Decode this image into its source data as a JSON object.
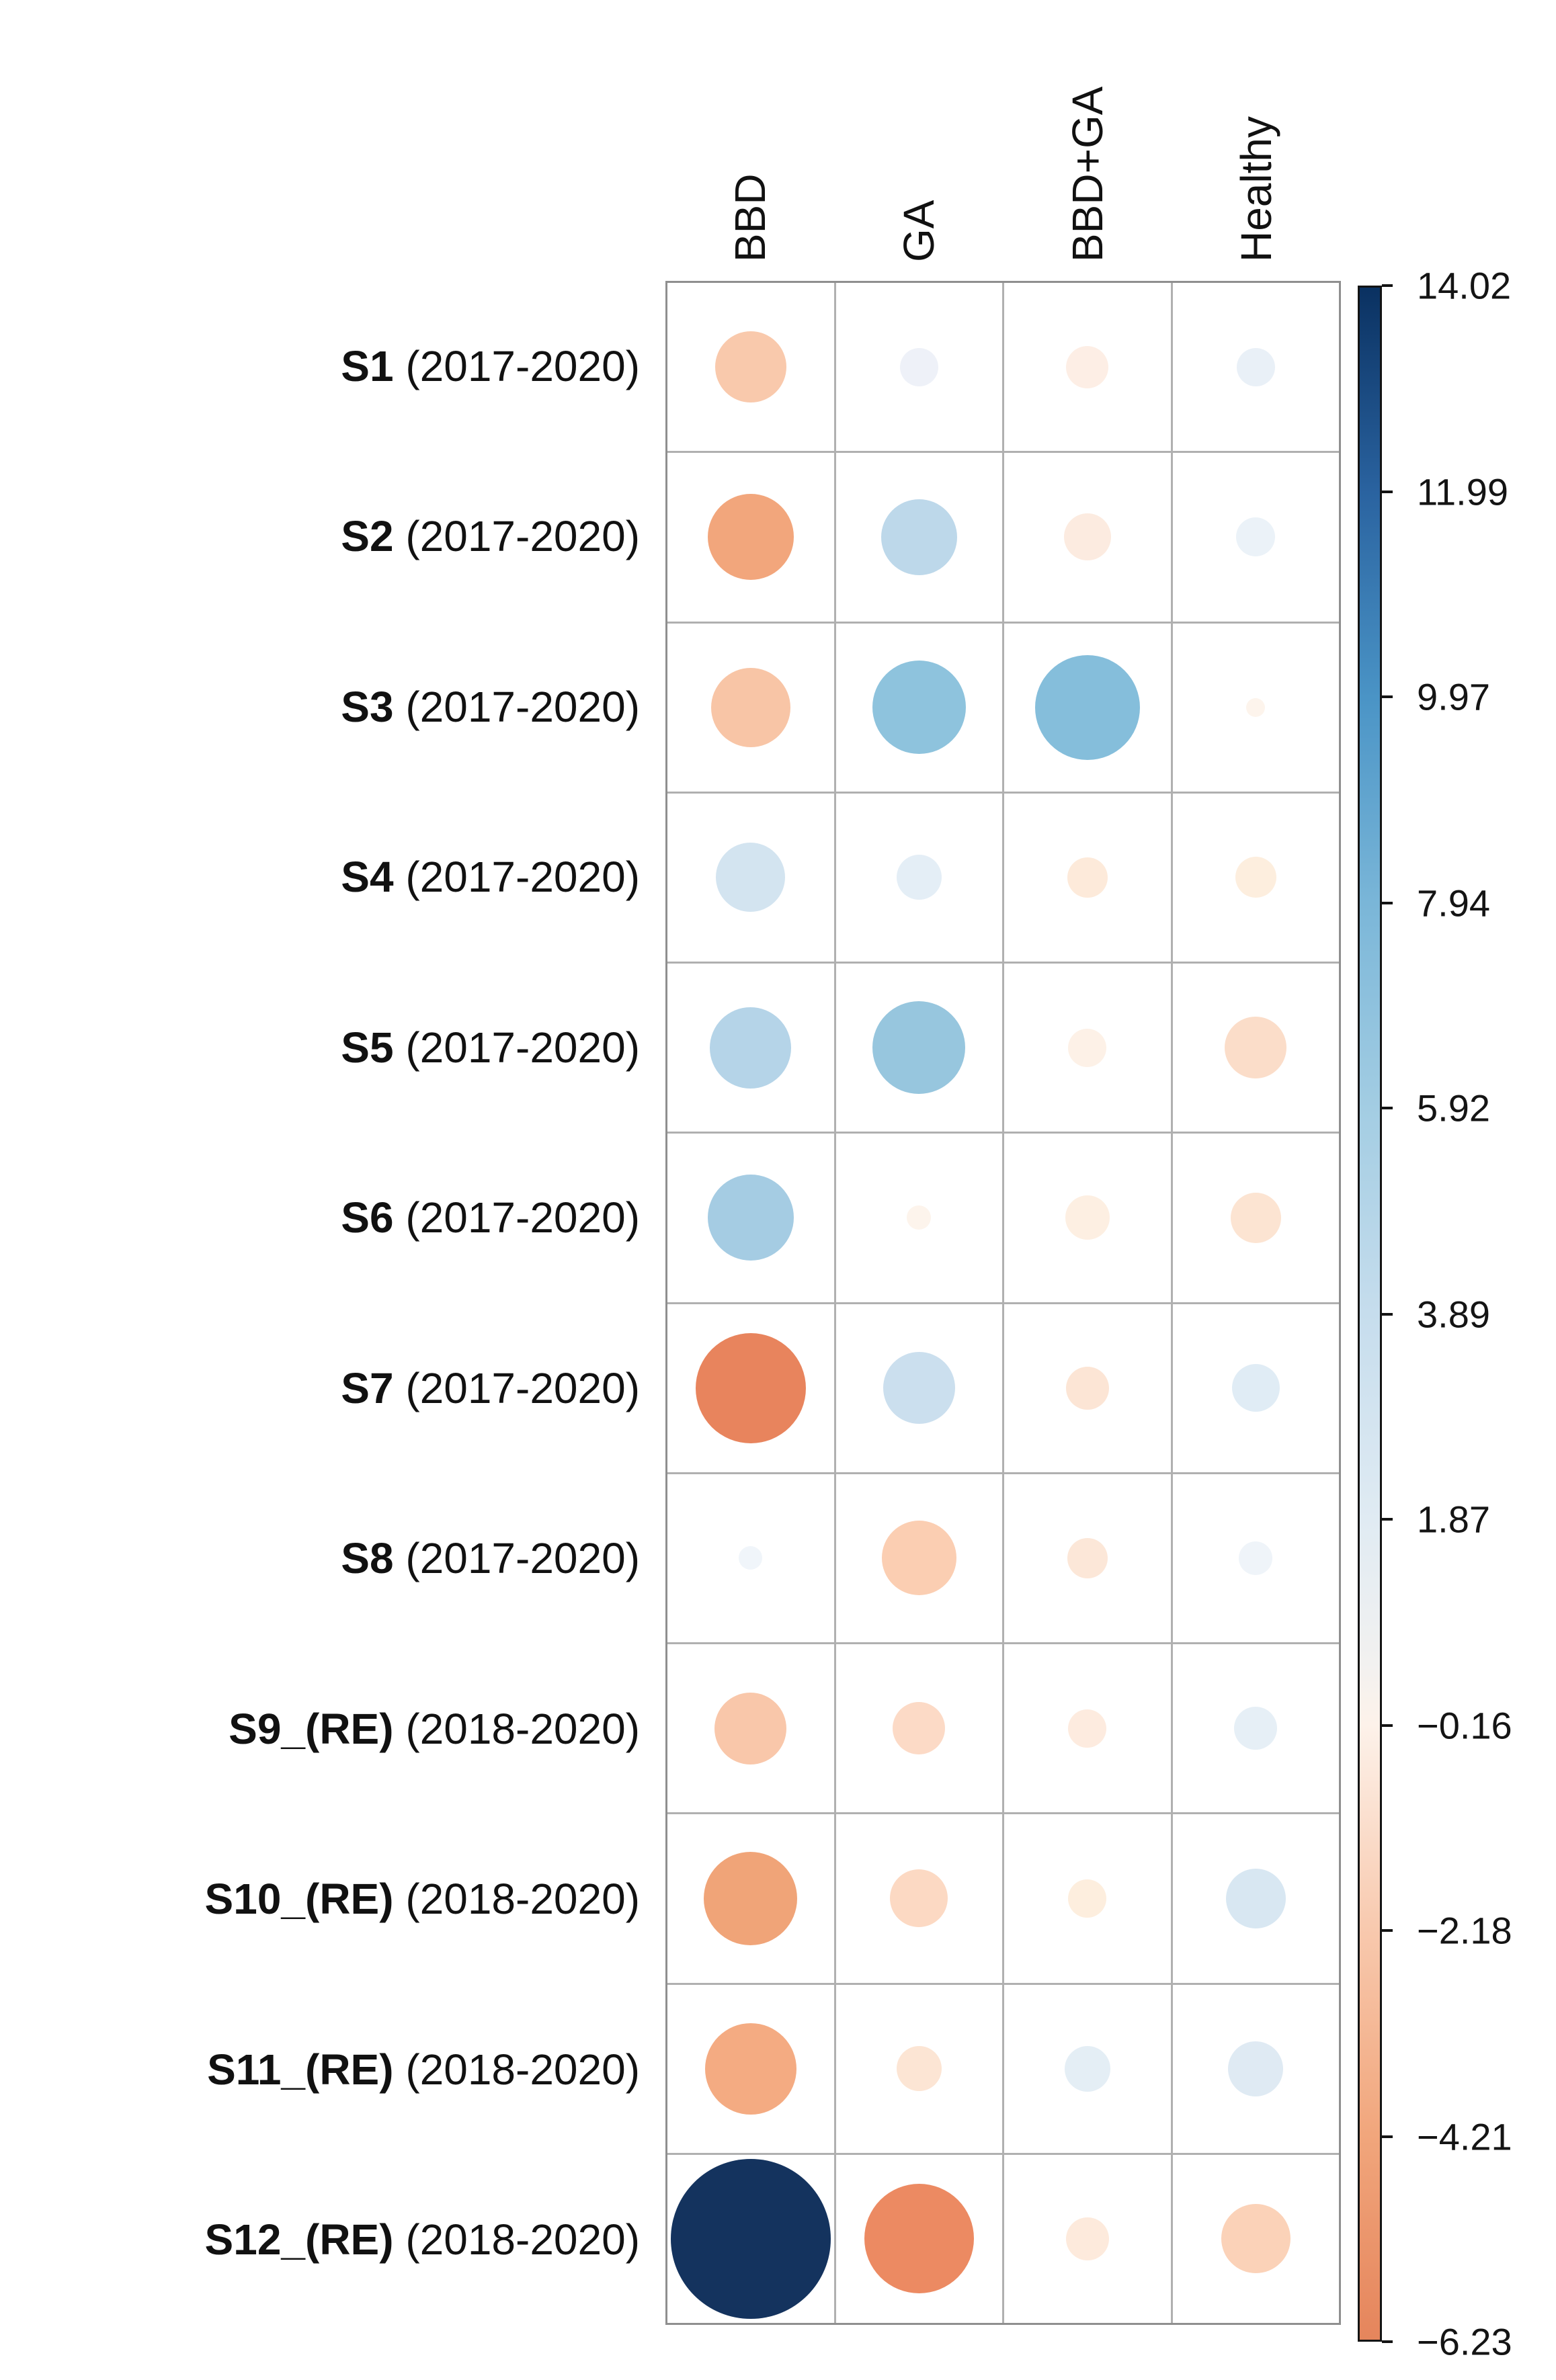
{
  "figure": {
    "description": "Bubble matrix (balloon plot) of association values between sites S1-S12 and disease categories, with diverging red-blue colorbar",
    "background": "#ffffff",
    "grid_line_color": "#b0b0b0",
    "grid_border_color": "#8f8f8f",
    "text_color": "#111111"
  },
  "chart_data": {
    "type": "heatmap",
    "subtype": "bubble-matrix",
    "note": "Both bubble size and bubble color encode the cell value; values estimated from bubble diameter and colorbar hue",
    "columns": [
      "BBD",
      "GA",
      "BBD+GA",
      "Healthy"
    ],
    "legend_position": "right",
    "rows": [
      {
        "label_bold": "S1",
        "label_rest": "(2017-2020)",
        "cells": [
          {
            "column": "BBD",
            "value": -2.3,
            "diameter": 106,
            "color": "#f9c9ac"
          },
          {
            "column": "GA",
            "value": 0.6,
            "diameter": 57,
            "color": "#eef1f8"
          },
          {
            "column": "BBD+GA",
            "value": -0.8,
            "diameter": 63,
            "color": "#fdeee5"
          },
          {
            "column": "Healthy",
            "value": 0.8,
            "diameter": 57,
            "color": "#e9f0f7"
          }
        ]
      },
      {
        "label_bold": "S2",
        "label_rest": "(2017-2020)",
        "cells": [
          {
            "column": "BBD",
            "value": -3.5,
            "diameter": 128,
            "color": "#f2a67c"
          },
          {
            "column": "GA",
            "value": 2.8,
            "diameter": 113,
            "color": "#bdd8ea"
          },
          {
            "column": "BBD+GA",
            "value": -1.1,
            "diameter": 70,
            "color": "#fcebe0"
          },
          {
            "column": "Healthy",
            "value": 0.7,
            "diameter": 58,
            "color": "#ebf2f8"
          }
        ]
      },
      {
        "label_bold": "S3",
        "label_rest": "(2017-2020)",
        "cells": [
          {
            "column": "BBD",
            "value": -2.9,
            "diameter": 118,
            "color": "#f8c5a6"
          },
          {
            "column": "GA",
            "value": 4.4,
            "diameter": 139,
            "color": "#8ec3dd"
          },
          {
            "column": "BBD+GA",
            "value": 5.2,
            "diameter": 156,
            "color": "#85bedb"
          },
          {
            "column": "Healthy",
            "value": -0.2,
            "diameter": 28,
            "color": "#fdf4ec"
          }
        ]
      },
      {
        "label_bold": "S4",
        "label_rest": "(2017-2020)",
        "cells": [
          {
            "column": "BBD",
            "value": 2.0,
            "diameter": 103,
            "color": "#d3e4f0"
          },
          {
            "column": "GA",
            "value": 1.0,
            "diameter": 67,
            "color": "#e4eef6"
          },
          {
            "column": "BBD+GA",
            "value": -0.8,
            "diameter": 60,
            "color": "#fdeada"
          },
          {
            "column": "Healthy",
            "value": -0.8,
            "diameter": 61,
            "color": "#fdeede"
          }
        ]
      },
      {
        "label_bold": "S5",
        "label_rest": "(2017-2020)",
        "cells": [
          {
            "column": "BBD",
            "value": 3.0,
            "diameter": 121,
            "color": "#b5d4e8"
          },
          {
            "column": "GA",
            "value": 4.2,
            "diameter": 138,
            "color": "#97c6de"
          },
          {
            "column": "BBD+GA",
            "value": -0.6,
            "diameter": 57,
            "color": "#fdf1e7"
          },
          {
            "column": "Healthy",
            "value": -1.9,
            "diameter": 92,
            "color": "#fbddc9"
          }
        ]
      },
      {
        "label_bold": "S6",
        "label_rest": "(2017-2020)",
        "cells": [
          {
            "column": "BBD",
            "value": 3.6,
            "diameter": 128,
            "color": "#a5cce3"
          },
          {
            "column": "GA",
            "value": -0.3,
            "diameter": 36,
            "color": "#fdf4ec"
          },
          {
            "column": "BBD+GA",
            "value": -1.0,
            "diameter": 66,
            "color": "#fdefe2"
          },
          {
            "column": "Healthy",
            "value": -1.3,
            "diameter": 75,
            "color": "#fce4d2"
          }
        ]
      },
      {
        "label_bold": "S7",
        "label_rest": "(2017-2020)",
        "cells": [
          {
            "column": "BBD",
            "value": -6.0,
            "diameter": 164,
            "color": "#e8845d"
          },
          {
            "column": "GA",
            "value": 2.3,
            "diameter": 107,
            "color": "#cbdfee"
          },
          {
            "column": "BBD+GA",
            "value": -1.0,
            "diameter": 64,
            "color": "#fce5d5"
          },
          {
            "column": "Healthy",
            "value": 1.1,
            "diameter": 71,
            "color": "#e0ecf5"
          }
        ]
      },
      {
        "label_bold": "S8",
        "label_rest": "(2017-2020)",
        "cells": [
          {
            "column": "BBD",
            "value": 0.3,
            "diameter": 35,
            "color": "#f0f5fa"
          },
          {
            "column": "GA",
            "value": -2.6,
            "diameter": 111,
            "color": "#fbceb2"
          },
          {
            "column": "BBD+GA",
            "value": -0.9,
            "diameter": 60,
            "color": "#fce7d8"
          },
          {
            "column": "Healthy",
            "value": 0.5,
            "diameter": 50,
            "color": "#eff4f9"
          }
        ]
      },
      {
        "label_bold": "S9_(RE)",
        "label_rest": "(2018-2020)",
        "cells": [
          {
            "column": "BBD",
            "value": -2.5,
            "diameter": 107,
            "color": "#f9c7aa"
          },
          {
            "column": "GA",
            "value": -1.4,
            "diameter": 78,
            "color": "#fcdac6"
          },
          {
            "column": "BBD+GA",
            "value": -0.7,
            "diameter": 57,
            "color": "#fdebdf"
          },
          {
            "column": "Healthy",
            "value": 0.9,
            "diameter": 64,
            "color": "#e6eff6"
          }
        ]
      },
      {
        "label_bold": "S10_(RE)",
        "label_rest": "(2018-2020)",
        "cells": [
          {
            "column": "BBD",
            "value": -4.3,
            "diameter": 139,
            "color": "#f0a478"
          },
          {
            "column": "GA",
            "value": -1.6,
            "diameter": 86,
            "color": "#fcd9c3"
          },
          {
            "column": "BBD+GA",
            "value": -0.7,
            "diameter": 57,
            "color": "#fdeede"
          },
          {
            "column": "Healthy",
            "value": 1.8,
            "diameter": 89,
            "color": "#d8e7f2"
          }
        ]
      },
      {
        "label_bold": "S11_(RE)",
        "label_rest": "(2018-2020)",
        "cells": [
          {
            "column": "BBD",
            "value": -4.1,
            "diameter": 136,
            "color": "#f4ab82"
          },
          {
            "column": "GA",
            "value": -1.0,
            "diameter": 67,
            "color": "#fce5d4"
          },
          {
            "column": "BBD+GA",
            "value": 1.0,
            "diameter": 68,
            "color": "#e4eef5"
          },
          {
            "column": "Healthy",
            "value": 1.5,
            "diameter": 82,
            "color": "#dfeaf3"
          }
        ]
      },
      {
        "label_bold": "S12_(RE)",
        "label_rest": "(2018-2020)",
        "cells": [
          {
            "column": "BBD",
            "value": 14.0,
            "diameter": 238,
            "color": "#14335e"
          },
          {
            "column": "GA",
            "value": -5.9,
            "diameter": 163,
            "color": "#ec8a62"
          },
          {
            "column": "BBD+GA",
            "value": -0.8,
            "diameter": 64,
            "color": "#fdeadc"
          },
          {
            "column": "Healthy",
            "value": -2.3,
            "diameter": 103,
            "color": "#fbd2b8"
          }
        ]
      }
    ],
    "colorbar": {
      "min": -6.23,
      "max": 14.02,
      "ticks": [
        {
          "value": 14.02,
          "label": "14.02"
        },
        {
          "value": 11.99,
          "label": "11.99"
        },
        {
          "value": 9.97,
          "label": "9.97"
        },
        {
          "value": 7.94,
          "label": "7.94"
        },
        {
          "value": 5.92,
          "label": "5.92"
        },
        {
          "value": 3.89,
          "label": "3.89"
        },
        {
          "value": 1.87,
          "label": "1.87"
        },
        {
          "value": -0.16,
          "label": "−0.16"
        },
        {
          "value": -2.18,
          "label": "−2.18"
        },
        {
          "value": -4.21,
          "label": "−4.21"
        },
        {
          "value": -6.23,
          "label": "−6.23"
        }
      ],
      "gradient": [
        {
          "pos": 0,
          "color": "#0a3161"
        },
        {
          "pos": 10,
          "color": "#2a63a0"
        },
        {
          "pos": 20,
          "color": "#4a94c6"
        },
        {
          "pos": 30,
          "color": "#7ab6d8"
        },
        {
          "pos": 40,
          "color": "#a3cde3"
        },
        {
          "pos": 50,
          "color": "#c6dded"
        },
        {
          "pos": 60,
          "color": "#e0ebf3"
        },
        {
          "pos": 67,
          "color": "#f2f1f0"
        },
        {
          "pos": 70,
          "color": "#fdf2ea"
        },
        {
          "pos": 80,
          "color": "#f8c9ae"
        },
        {
          "pos": 90,
          "color": "#f1a67c"
        },
        {
          "pos": 100,
          "color": "#e5855c"
        }
      ]
    }
  }
}
